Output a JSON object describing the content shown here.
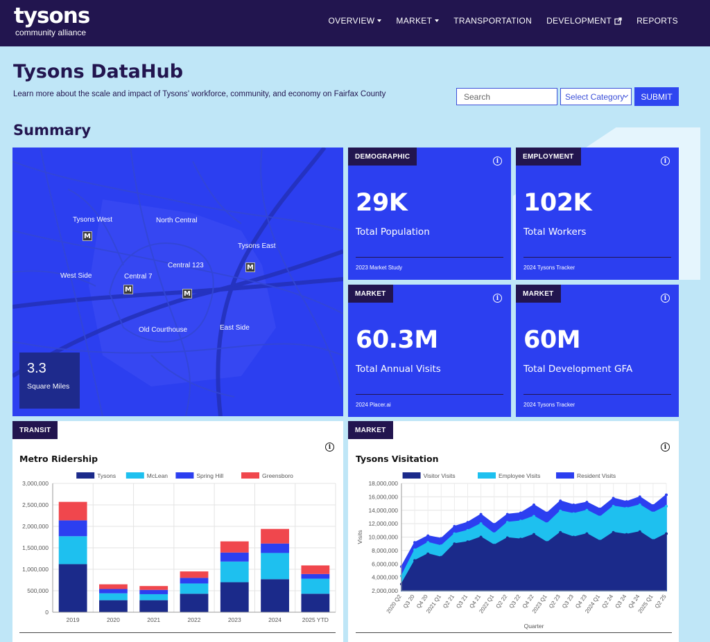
{
  "nav": {
    "logo": {
      "name": "tysons",
      "sub": "community alliance"
    },
    "links": [
      {
        "label": "OVERVIEW",
        "caret": true
      },
      {
        "label": "MARKET",
        "caret": true
      },
      {
        "label": "TRANSPORTATION",
        "caret": false
      },
      {
        "label": "DEVELOPMENT",
        "caret": false,
        "external": true
      },
      {
        "label": "REPORTS",
        "caret": false
      }
    ]
  },
  "header": {
    "title": "Tysons DataHub",
    "subtitle": "Learn more about the scale and impact of Tysons’ workforce, community, and economy on Fairfax County",
    "search_placeholder": "Search",
    "category_select": "Select Category",
    "submit_label": "SUBMIT"
  },
  "summary_title": "Summary",
  "map": {
    "labels": [
      "Tysons West",
      "North  Central",
      "Tysons East",
      "West Side",
      "Central 7",
      "Central 123",
      "Old Courthouse",
      "East Side"
    ],
    "metro_icon": "M",
    "area_value": "3.3",
    "area_label": "Square Miles"
  },
  "stats": [
    {
      "tag": "DEMOGRAPHIC",
      "value": "29K",
      "label": "Total Population",
      "source": "2023 Market Study"
    },
    {
      "tag": "EMPLOYMENT",
      "value": "102K",
      "label": "Total Workers",
      "source": "2024 Tysons Tracker"
    },
    {
      "tag": "MARKET",
      "value": "60.3M",
      "label": "Total Annual Visits",
      "source": "2024 Placer.ai"
    },
    {
      "tag": "MARKET",
      "value": "60M",
      "label": "Total Development GFA",
      "source": "2024 Tysons Tracker"
    }
  ],
  "info_glyph": "i",
  "colors": {
    "nav_bg": "#22154f",
    "accent": "#2c3ff0",
    "page_bg": "#bfe6f7"
  },
  "chart_data": [
    {
      "type": "bar",
      "tag": "TRANSIT",
      "title": "Metro Ridership",
      "stacked": true,
      "categories": [
        "2019",
        "2020",
        "2021",
        "2022",
        "2023",
        "2024",
        "2025 YTD"
      ],
      "series": [
        {
          "name": "Tysons",
          "color": "#1b2a8a",
          "values": [
            1120000,
            280000,
            280000,
            430000,
            700000,
            770000,
            430000
          ]
        },
        {
          "name": "McLean",
          "color": "#1ec0ef",
          "values": [
            650000,
            160000,
            140000,
            240000,
            480000,
            610000,
            350000
          ]
        },
        {
          "name": "Spring Hill",
          "color": "#2c3ff0",
          "values": [
            370000,
            100000,
            100000,
            130000,
            210000,
            220000,
            110000
          ]
        },
        {
          "name": "Greensboro",
          "color": "#f0474d",
          "values": [
            430000,
            110000,
            90000,
            150000,
            260000,
            340000,
            200000
          ]
        }
      ],
      "ylim": [
        0,
        3000000
      ],
      "yticks": [
        "0",
        "500,000",
        "1,000,000",
        "1,500,000",
        "2,000,000",
        "2,500,000",
        "3,000,000"
      ],
      "legend": "top"
    },
    {
      "type": "area",
      "tag": "MARKET",
      "title": "Tysons Visitation",
      "stacked": true,
      "xlabel": "Quarter",
      "ylabel": "Visits",
      "x": [
        "2020 Q2",
        "Q3 20",
        "Q4 20",
        "2021 Q1",
        "Q2 21",
        "Q3 21",
        "Q4 21",
        "2022 Q1",
        "Q2 22",
        "Q3 22",
        "Q4 22",
        "2023 Q1",
        "Q2 23",
        "Q3 23",
        "Q4 23",
        "2024 Q1",
        "Q2 24",
        "Q3 24",
        "Q4 24",
        "2025 Q1",
        "Q2 25"
      ],
      "series": [
        {
          "name": "Visitor Visits",
          "color": "#1b2a8a",
          "values": [
            3000000,
            6500000,
            7500000,
            7000000,
            9000000,
            9300000,
            10000000,
            8800000,
            9900000,
            9700000,
            10400000,
            9200000,
            10700000,
            10000000,
            10500000,
            9400000,
            10700000,
            10400000,
            10800000,
            9500000,
            10500000
          ]
        },
        {
          "name": "Employee Visits",
          "color": "#1ec0ef",
          "values": [
            4200000,
            8100000,
            9200000,
            8700000,
            10500000,
            11000000,
            12000000,
            10500000,
            12200000,
            12400000,
            13100000,
            12000000,
            13900000,
            13500000,
            14000000,
            13000000,
            14600000,
            14300000,
            14800000,
            13600000,
            14600000
          ]
        },
        {
          "name": "Resident Visits",
          "color": "#2c3ff0",
          "values": [
            5600000,
            9200000,
            10200000,
            9800000,
            11600000,
            12200000,
            13400000,
            11900000,
            13400000,
            13600000,
            14800000,
            13600000,
            15400000,
            14800000,
            15200000,
            14200000,
            15800000,
            15300000,
            16000000,
            14700000,
            16300000
          ]
        }
      ],
      "ylim": [
        2000000,
        18000000
      ],
      "yticks": [
        "2,000,000",
        "4,000,000",
        "6,000,000",
        "8,000,000",
        "10,000,000",
        "12,000,000",
        "14,000,000",
        "16,000,000",
        "18,000,000"
      ],
      "legend": "top"
    }
  ]
}
